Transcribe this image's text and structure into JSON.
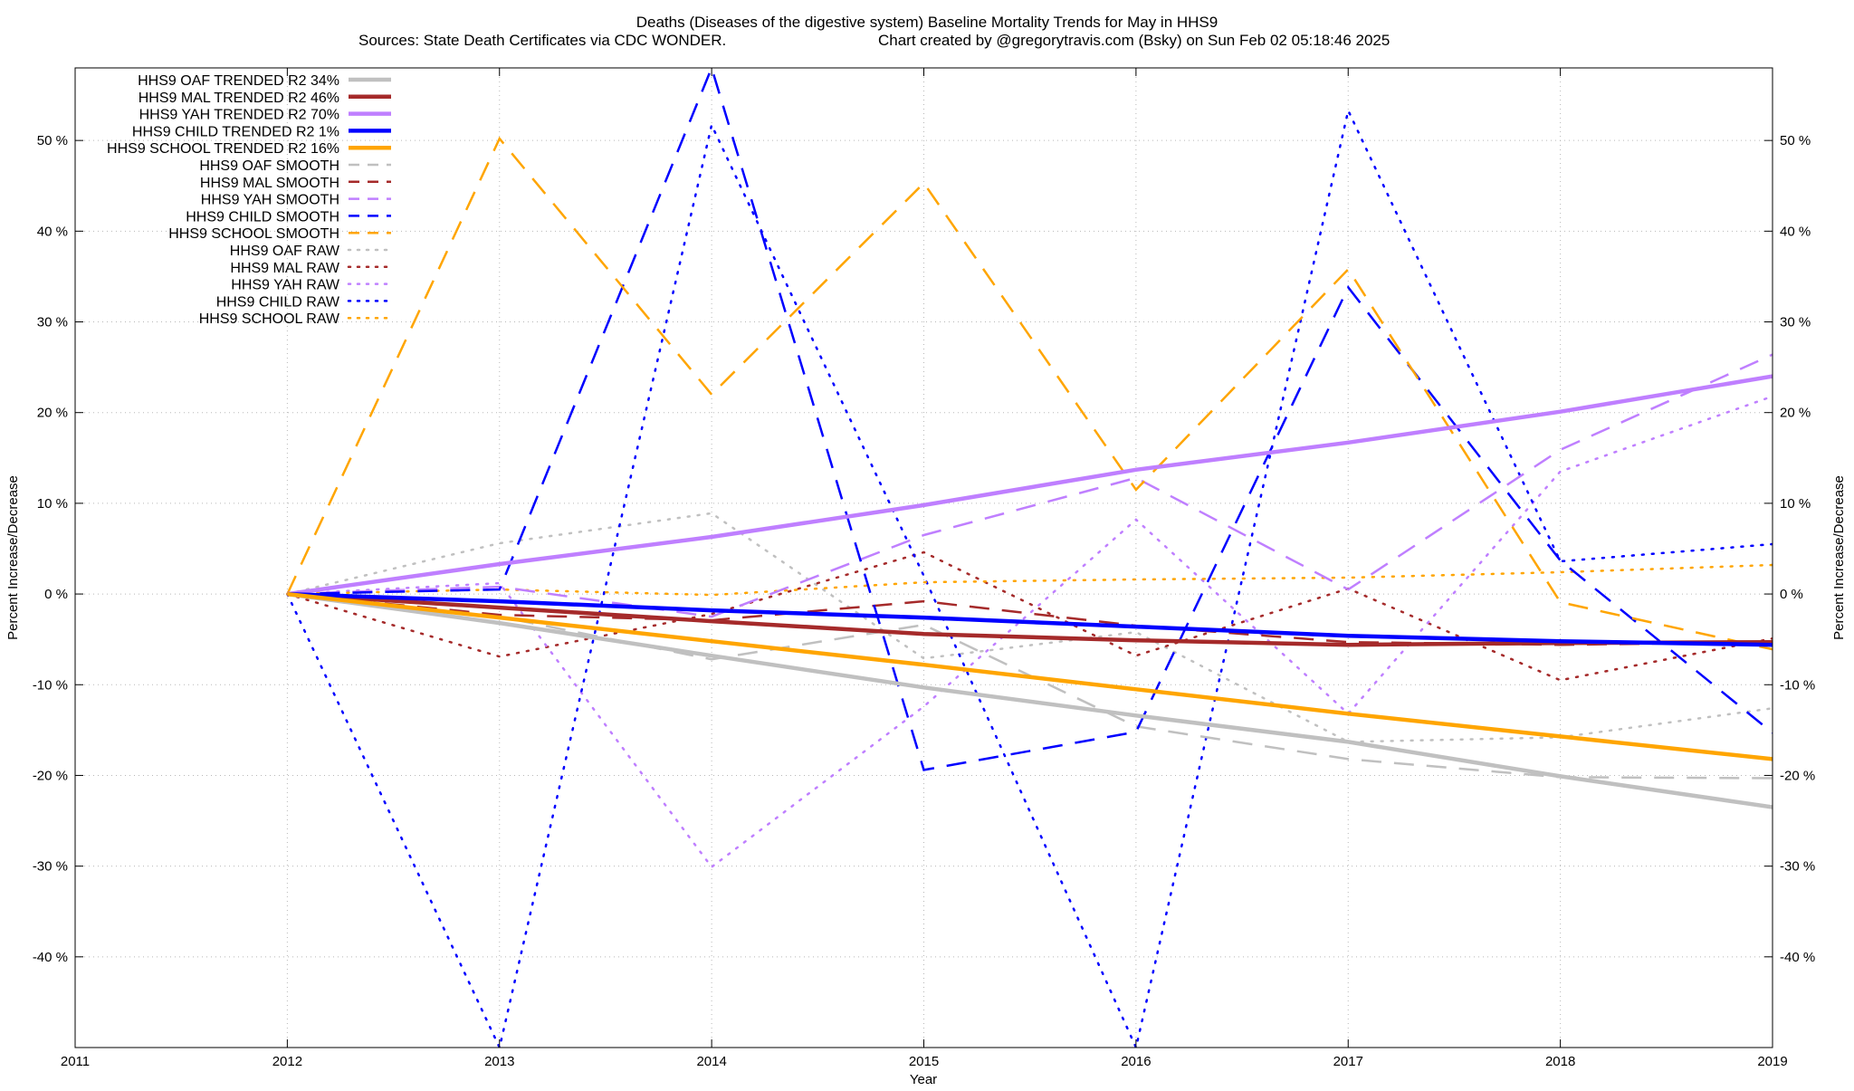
{
  "chart_data": {
    "type": "line",
    "title": "Deaths (Diseases of the digestive system)  Baseline Mortality Trends for May in HHS9",
    "subtitle_left": "Sources: State Death Certificates via CDC WONDER.",
    "subtitle_right": "Chart created by @gregorytravis.com (Bsky) on Sun Feb 02 05:18:46 2025",
    "xlabel": "Year",
    "ylabel_left": "Percent Increase/Decrease",
    "ylabel_right": "Percent Increase/Decrease",
    "xlim": [
      2011,
      2019
    ],
    "ylim": [
      -50,
      58
    ],
    "x_ticks": [
      {
        "value": 2011,
        "label": "2011"
      },
      {
        "value": 2012,
        "label": "2012"
      },
      {
        "value": 2013,
        "label": "2013"
      },
      {
        "value": 2014,
        "label": "2014"
      },
      {
        "value": 2015,
        "label": "2015"
      },
      {
        "value": 2016,
        "label": "2016"
      },
      {
        "value": 2017,
        "label": "2017"
      },
      {
        "value": 2018,
        "label": "2018"
      },
      {
        "value": 2019,
        "label": "2019"
      }
    ],
    "y_ticks": [
      {
        "value": 50,
        "label": "50 %"
      },
      {
        "value": 40,
        "label": "40 %"
      },
      {
        "value": 30,
        "label": "30 %"
      },
      {
        "value": 20,
        "label": "20 %"
      },
      {
        "value": 10,
        "label": "10 %"
      },
      {
        "value": 0,
        "label": "0 %"
      },
      {
        "value": -10,
        "label": "-10 %"
      },
      {
        "value": -20,
        "label": "-20 %"
      },
      {
        "value": -30,
        "label": "-30 %"
      },
      {
        "value": -40,
        "label": "-40 %"
      }
    ],
    "grid": true,
    "legend_position": "top-left",
    "x": [
      2012,
      2013,
      2014,
      2015,
      2016,
      2017,
      2018,
      2019
    ],
    "series": [
      {
        "name": "HHS9 OAF TRENDED R2  34%",
        "style": "solid",
        "color": "#c0c0c0",
        "values": [
          0,
          -3.2,
          -6.8,
          -10.3,
          -13.4,
          -16.3,
          -20.1,
          -23.5
        ]
      },
      {
        "name": "HHS9 MAL TRENDED R2  46%",
        "style": "solid",
        "color": "#a52a2a",
        "values": [
          0,
          -1.5,
          -3.0,
          -4.4,
          -5.1,
          -5.6,
          -5.4,
          -5.3
        ]
      },
      {
        "name": "HHS9 YAH TRENDED R2  70%",
        "style": "solid",
        "color": "#bf7fff",
        "values": [
          0,
          3.3,
          6.3,
          9.8,
          13.7,
          16.7,
          20.1,
          24.0
        ]
      },
      {
        "name": "HHS9 CHILD TRENDED R2   1%",
        "style": "solid",
        "color": "#0000ff",
        "values": [
          0,
          -0.8,
          -1.8,
          -2.6,
          -3.6,
          -4.6,
          -5.2,
          -5.6
        ]
      },
      {
        "name": "HHS9 SCHOOL TRENDED R2  16%",
        "style": "solid",
        "color": "#ffa500",
        "values": [
          0,
          -2.6,
          -5.2,
          -7.8,
          -10.5,
          -13.2,
          -15.7,
          -18.2
        ]
      },
      {
        "name": "HHS9 OAF SMOOTH",
        "style": "dashed",
        "color": "#c0c0c0",
        "values": [
          0,
          -2.5,
          -7.2,
          -3.4,
          -14.6,
          -18.2,
          -20.2,
          -20.3
        ]
      },
      {
        "name": "HHS9 MAL SMOOTH",
        "style": "dashed",
        "color": "#a52a2a",
        "values": [
          0,
          -2.3,
          -2.9,
          -0.8,
          -3.5,
          -5.3,
          -5.6,
          -5.3
        ]
      },
      {
        "name": "HHS9 YAH SMOOTH",
        "style": "dashed",
        "color": "#bf7fff",
        "values": [
          0,
          0.8,
          -2.5,
          6.5,
          12.8,
          0.5,
          15.9,
          26.4
        ]
      },
      {
        "name": "HHS9 CHILD SMOOTH",
        "style": "dashed",
        "color": "#0000ff",
        "values": [
          0,
          0.5,
          58,
          -19.4,
          -15.2,
          33.8,
          3.7,
          -15.3
        ]
      },
      {
        "name": "HHS9 SCHOOL SMOOTH",
        "style": "dashed",
        "color": "#ffa500",
        "values": [
          0,
          50.2,
          22,
          45.3,
          11.5,
          35.8,
          -0.9,
          -6.1
        ]
      },
      {
        "name": "HHS9 OAF RAW",
        "style": "dotted",
        "color": "#c0c0c0",
        "values": [
          0,
          5.6,
          8.9,
          -7.1,
          -4.2,
          -16.3,
          -15.8,
          -12.6
        ]
      },
      {
        "name": "HHS9 MAL RAW",
        "style": "dotted",
        "color": "#a52a2a",
        "values": [
          0,
          -6.9,
          -2.2,
          4.6,
          -6.8,
          0.6,
          -9.5,
          -4.9
        ]
      },
      {
        "name": "HHS9 YAH RAW",
        "style": "dotted",
        "color": "#bf7fff",
        "values": [
          0,
          1.2,
          -30.1,
          -12.4,
          8.2,
          -13.2,
          13.5,
          21.8
        ]
      },
      {
        "name": "HHS9 CHILD RAW",
        "style": "dotted",
        "color": "#0000ff",
        "values": [
          0,
          -50.0,
          51.7,
          2.0,
          -50.0,
          53.3,
          3.6,
          5.5
        ]
      },
      {
        "name": "HHS9 SCHOOL RAW",
        "style": "dotted",
        "color": "#ffa500",
        "values": [
          0,
          0.5,
          -0.1,
          1.3,
          1.6,
          1.8,
          2.4,
          3.2
        ]
      }
    ]
  }
}
